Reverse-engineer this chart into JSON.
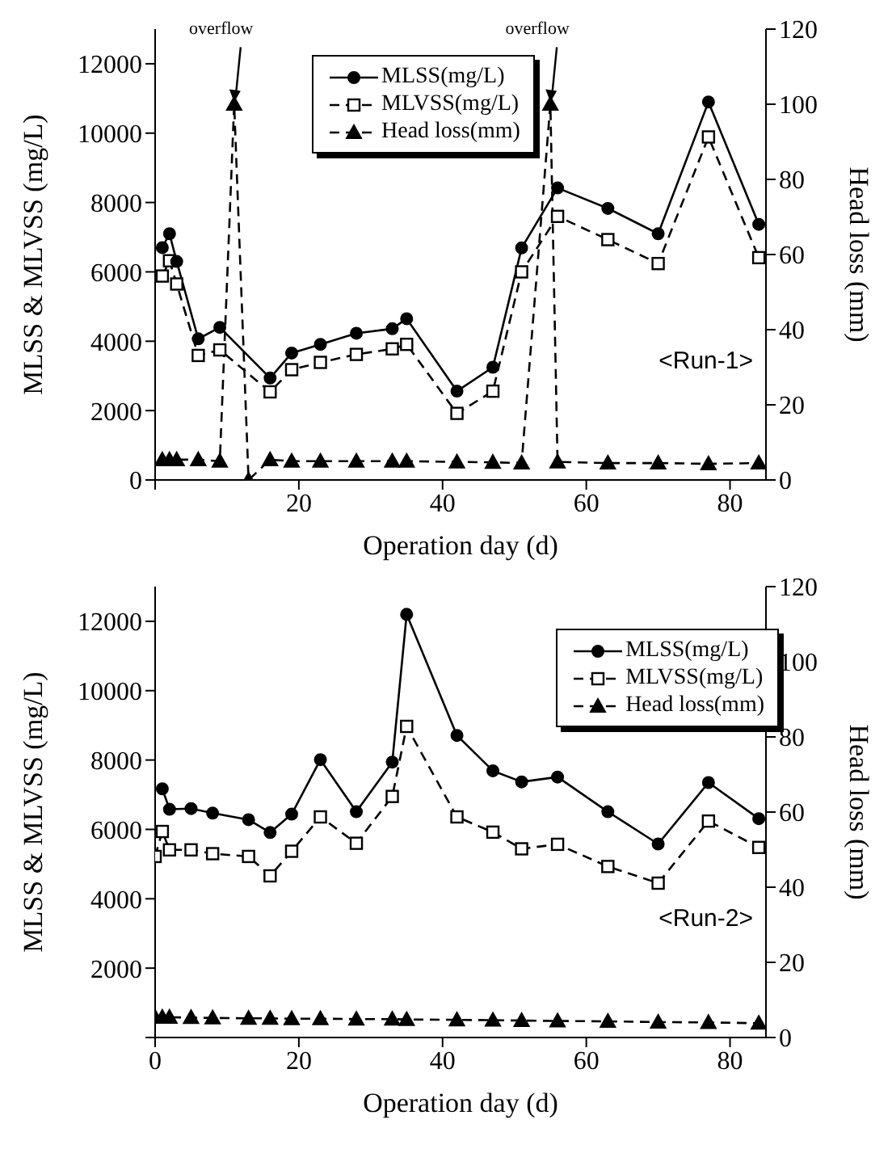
{
  "chart_data": [
    {
      "type": "line",
      "xlabel": "Operation day (d)",
      "ylabel": "MLSS & MLVSS (mg/L)",
      "y2label": "Head loss (mm)",
      "xlim": [
        0,
        85
      ],
      "xticks": [
        {
          "value": 0,
          "label": null
        },
        20,
        40,
        60,
        80
      ],
      "ylim": [
        0,
        13000
      ],
      "yticks": [
        0,
        2000,
        4000,
        6000,
        8000,
        10000,
        12000
      ],
      "y2lim": [
        0,
        120
      ],
      "y2ticks": [
        0,
        20,
        40,
        60,
        80,
        100,
        120
      ],
      "legend": "top",
      "annotations": [
        {
          "text": "overflow",
          "x": 11,
          "y": 10800
        },
        {
          "text": "overflow",
          "x": 55,
          "y": 10800
        },
        "<Run-1>"
      ],
      "series": [
        {
          "name": "MLSS(mg/L)",
          "color": "#000000",
          "marker": "circle",
          "line_style": "solid",
          "x": [
            1,
            2,
            3,
            6,
            9,
            16,
            19,
            23,
            28,
            33,
            35,
            42,
            47,
            51,
            56,
            63,
            70,
            77,
            84
          ],
          "values": [
            6700,
            7100,
            6300,
            4070,
            4400,
            2940,
            3660,
            3910,
            4230,
            4360,
            4650,
            2560,
            3250,
            6690,
            8420,
            7830,
            7100,
            10900,
            7370
          ]
        },
        {
          "name": "MLVSS(mg/L)",
          "color": "#000000",
          "marker": "square",
          "line_style": "dashed",
          "x": [
            1,
            2,
            3,
            6,
            9,
            16,
            19,
            23,
            28,
            33,
            35,
            42,
            47,
            51,
            56,
            63,
            70,
            77,
            84
          ],
          "values": [
            5880,
            6320,
            5650,
            3590,
            3750,
            2540,
            3180,
            3390,
            3620,
            3780,
            3910,
            1920,
            2560,
            6000,
            7600,
            6930,
            6240,
            9890,
            6410
          ]
        },
        {
          "name": "Head loss(mm)",
          "color": "#000000",
          "marker": "triangle",
          "line_style": "dashed",
          "axis": "y2",
          "x": [
            1,
            2,
            3,
            6,
            9,
            11,
            13,
            16,
            19,
            23,
            28,
            33,
            35,
            42,
            47,
            51,
            55,
            56,
            63,
            70,
            77,
            84
          ],
          "values": [
            5.4,
            5.4,
            5.4,
            5.4,
            5,
            100,
            0,
            5.4,
            5,
            5,
            5,
            5,
            5,
            4.8,
            4.7,
            4.5,
            100,
            4.8,
            4.5,
            4.5,
            4.3,
            4.5
          ]
        }
      ]
    },
    {
      "type": "line",
      "xlabel": "Operation day (d)",
      "ylabel": "MLSS & MLVSS (mg/L)",
      "y2label": "Head loss (mm)",
      "xlim": [
        0,
        85
      ],
      "xticks": [
        0,
        20,
        40,
        60,
        80
      ],
      "ylim": [
        0,
        13000
      ],
      "yticks": [
        {
          "value": 0,
          "label": null
        },
        2000,
        4000,
        6000,
        8000,
        10000,
        12000
      ],
      "y2lim": [
        0,
        120
      ],
      "y2ticks": [
        0,
        20,
        40,
        60,
        80,
        100,
        120
      ],
      "legend": "top right",
      "annotations": [
        "<Run-2>"
      ],
      "series": [
        {
          "name": "MLSS(mg/L)",
          "color": "#000000",
          "marker": "circle",
          "line_style": "solid",
          "x": [
            1,
            2,
            5,
            8,
            13,
            16,
            19,
            23,
            28,
            33,
            35,
            42,
            47,
            51,
            56,
            63,
            70,
            77,
            84
          ],
          "values": [
            7170,
            6580,
            6600,
            6470,
            6280,
            5910,
            6440,
            8010,
            6510,
            7940,
            12200,
            8710,
            7690,
            7370,
            7510,
            6510,
            5580,
            7350,
            6310
          ]
        },
        {
          "name": "MLVSS(mg/L)",
          "color": "#000000",
          "marker": "square",
          "line_style": "dashed",
          "x": [
            0,
            1,
            2,
            5,
            8,
            13,
            16,
            19,
            23,
            28,
            33,
            35,
            42,
            47,
            51,
            56,
            63,
            70,
            77,
            84
          ],
          "values": [
            5220,
            5940,
            5410,
            5410,
            5300,
            5220,
            4660,
            5370,
            6360,
            5600,
            6950,
            8970,
            6360,
            5920,
            5440,
            5570,
            4930,
            4450,
            6240,
            5480
          ]
        },
        {
          "name": "Head loss(mm)",
          "color": "#000000",
          "marker": "triangle",
          "line_style": "dashed",
          "axis": "y2",
          "x": [
            0,
            1,
            2,
            5,
            8,
            13,
            16,
            19,
            23,
            28,
            33,
            35,
            42,
            47,
            51,
            56,
            63,
            70,
            77,
            84
          ],
          "values": [
            5.4,
            5.4,
            5.4,
            5.3,
            5.2,
            5.1,
            5.1,
            5,
            5,
            4.9,
            4.9,
            4.8,
            4.7,
            4.6,
            4.5,
            4.4,
            4.3,
            4.1,
            4,
            3.8
          ]
        }
      ]
    }
  ]
}
